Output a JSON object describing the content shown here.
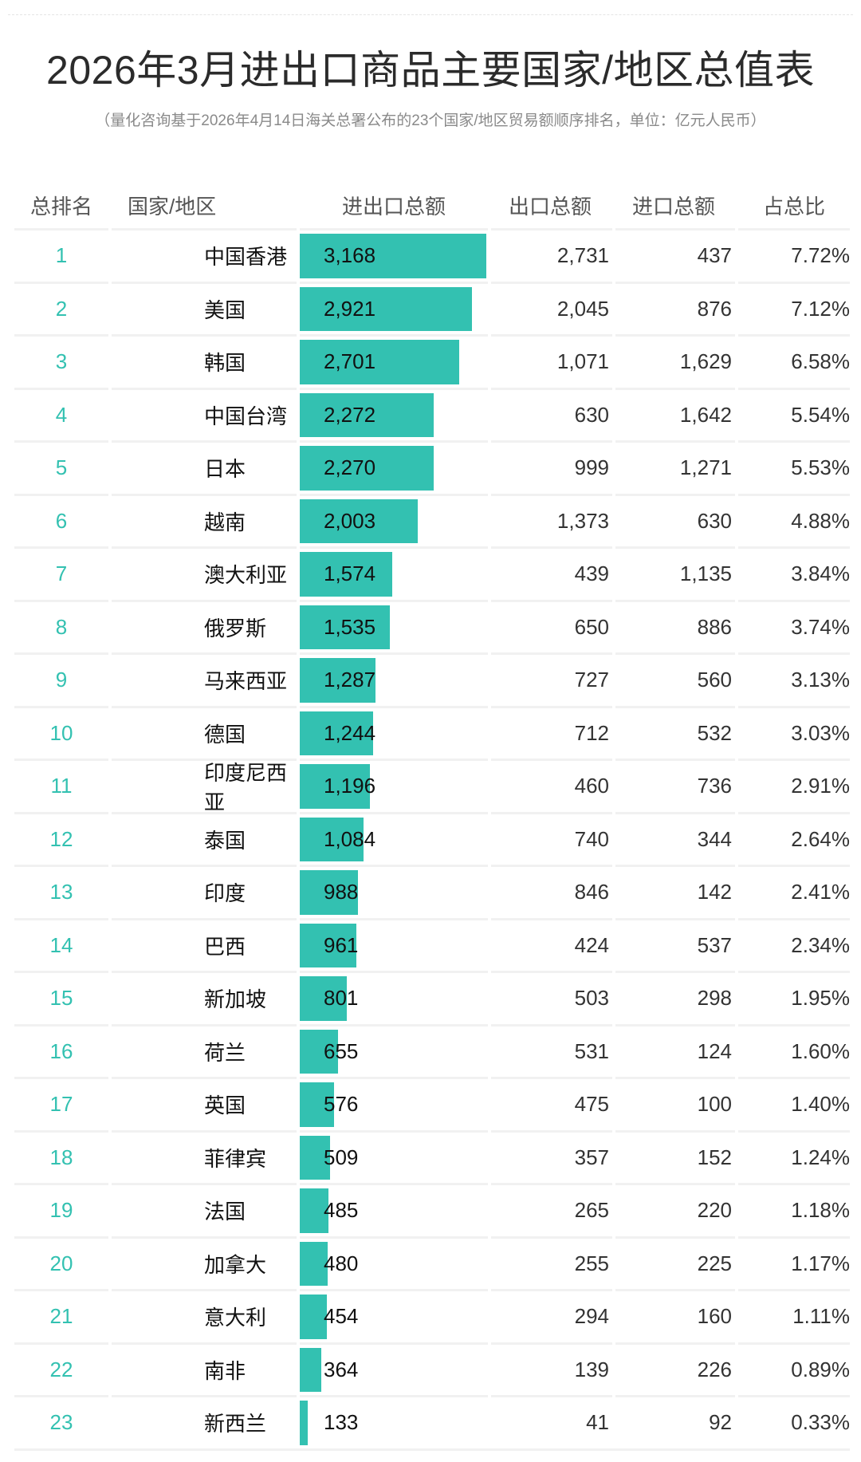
{
  "title": "2026年3月进出口商品主要国家/地区总值表",
  "subtitle": "（量化咨询基于2026年4月14日海关总署公布的23个国家/地区贸易额顺序排名，单位：亿元人民币）",
  "accent_color": "#33c1b1",
  "headers": {
    "rank": "总排名",
    "name": "国家/地区",
    "total": "进出口总额",
    "exports": "出口总额",
    "imports": "进口总额",
    "share": "占总比"
  },
  "rows": [
    {
      "rank": "1",
      "name": "中国香港",
      "total": "3,168",
      "exports": "2,731",
      "imports": "437",
      "share": "7.72%"
    },
    {
      "rank": "2",
      "name": "美国",
      "total": "2,921",
      "exports": "2,045",
      "imports": "876",
      "share": "7.12%"
    },
    {
      "rank": "3",
      "name": "韩国",
      "total": "2,701",
      "exports": "1,071",
      "imports": "1,629",
      "share": "6.58%"
    },
    {
      "rank": "4",
      "name": "中国台湾",
      "total": "2,272",
      "exports": "630",
      "imports": "1,642",
      "share": "5.54%"
    },
    {
      "rank": "5",
      "name": "日本",
      "total": "2,270",
      "exports": "999",
      "imports": "1,271",
      "share": "5.53%"
    },
    {
      "rank": "6",
      "name": "越南",
      "total": "2,003",
      "exports": "1,373",
      "imports": "630",
      "share": "4.88%"
    },
    {
      "rank": "7",
      "name": "澳大利亚",
      "total": "1,574",
      "exports": "439",
      "imports": "1,135",
      "share": "3.84%"
    },
    {
      "rank": "8",
      "name": "俄罗斯",
      "total": "1,535",
      "exports": "650",
      "imports": "886",
      "share": "3.74%"
    },
    {
      "rank": "9",
      "name": "马来西亚",
      "total": "1,287",
      "exports": "727",
      "imports": "560",
      "share": "3.13%"
    },
    {
      "rank": "10",
      "name": "德国",
      "total": "1,244",
      "exports": "712",
      "imports": "532",
      "share": "3.03%"
    },
    {
      "rank": "11",
      "name": "印度尼西亚",
      "total": "1,196",
      "exports": "460",
      "imports": "736",
      "share": "2.91%"
    },
    {
      "rank": "12",
      "name": "泰国",
      "total": "1,084",
      "exports": "740",
      "imports": "344",
      "share": "2.64%"
    },
    {
      "rank": "13",
      "name": "印度",
      "total": "988",
      "exports": "846",
      "imports": "142",
      "share": "2.41%"
    },
    {
      "rank": "14",
      "name": "巴西",
      "total": "961",
      "exports": "424",
      "imports": "537",
      "share": "2.34%"
    },
    {
      "rank": "15",
      "name": "新加坡",
      "total": "801",
      "exports": "503",
      "imports": "298",
      "share": "1.95%"
    },
    {
      "rank": "16",
      "name": "荷兰",
      "total": "655",
      "exports": "531",
      "imports": "124",
      "share": "1.60%"
    },
    {
      "rank": "17",
      "name": "英国",
      "total": "576",
      "exports": "475",
      "imports": "100",
      "share": "1.40%"
    },
    {
      "rank": "18",
      "name": "菲律宾",
      "total": "509",
      "exports": "357",
      "imports": "152",
      "share": "1.24%"
    },
    {
      "rank": "19",
      "name": "法国",
      "total": "485",
      "exports": "265",
      "imports": "220",
      "share": "1.18%"
    },
    {
      "rank": "20",
      "name": "加拿大",
      "total": "480",
      "exports": "255",
      "imports": "225",
      "share": "1.17%"
    },
    {
      "rank": "21",
      "name": "意大利",
      "total": "454",
      "exports": "294",
      "imports": "160",
      "share": "1.11%"
    },
    {
      "rank": "22",
      "name": "南非",
      "total": "364",
      "exports": "139",
      "imports": "226",
      "share": "0.89%"
    },
    {
      "rank": "23",
      "name": "新西兰",
      "total": "133",
      "exports": "41",
      "imports": "92",
      "share": "0.33%"
    }
  ],
  "chart_data": {
    "type": "table",
    "title": "2026年3月进出口商品主要国家/地区总值表",
    "subtitle": "（量化咨询基于2026年4月14日海关总署公布的23个国家/地区贸易额顺序排名，单位：亿元人民币）",
    "columns": [
      "总排名",
      "国家/地区",
      "进出口总额",
      "出口总额",
      "进口总额",
      "占总比"
    ],
    "bar_column": "进出口总额",
    "unit": "亿元人民币",
    "categories": [
      "中国香港",
      "美国",
      "韩国",
      "中国台湾",
      "日本",
      "越南",
      "澳大利亚",
      "俄罗斯",
      "马来西亚",
      "德国",
      "印度尼西亚",
      "泰国",
      "印度",
      "巴西",
      "新加坡",
      "荷兰",
      "英国",
      "菲律宾",
      "法国",
      "加拿大",
      "意大利",
      "南非",
      "新西兰"
    ],
    "series": [
      {
        "name": "进出口总额",
        "values": [
          3168,
          2921,
          2701,
          2272,
          2270,
          2003,
          1574,
          1535,
          1287,
          1244,
          1196,
          1084,
          988,
          961,
          801,
          655,
          576,
          509,
          485,
          480,
          454,
          364,
          133
        ]
      },
      {
        "name": "出口总额",
        "values": [
          2731,
          2045,
          1071,
          630,
          999,
          1373,
          439,
          650,
          727,
          712,
          460,
          740,
          846,
          424,
          503,
          531,
          475,
          357,
          265,
          255,
          294,
          139,
          41
        ]
      },
      {
        "name": "进口总额",
        "values": [
          437,
          876,
          1629,
          1642,
          1271,
          630,
          1135,
          886,
          560,
          532,
          736,
          344,
          142,
          537,
          298,
          124,
          100,
          152,
          220,
          225,
          160,
          226,
          92
        ]
      },
      {
        "name": "占总比(%)",
        "values": [
          7.72,
          7.12,
          6.58,
          5.54,
          5.53,
          4.88,
          3.84,
          3.74,
          3.13,
          3.03,
          2.91,
          2.64,
          2.41,
          2.34,
          1.95,
          1.6,
          1.4,
          1.24,
          1.18,
          1.17,
          1.11,
          0.89,
          0.33
        ]
      }
    ]
  }
}
